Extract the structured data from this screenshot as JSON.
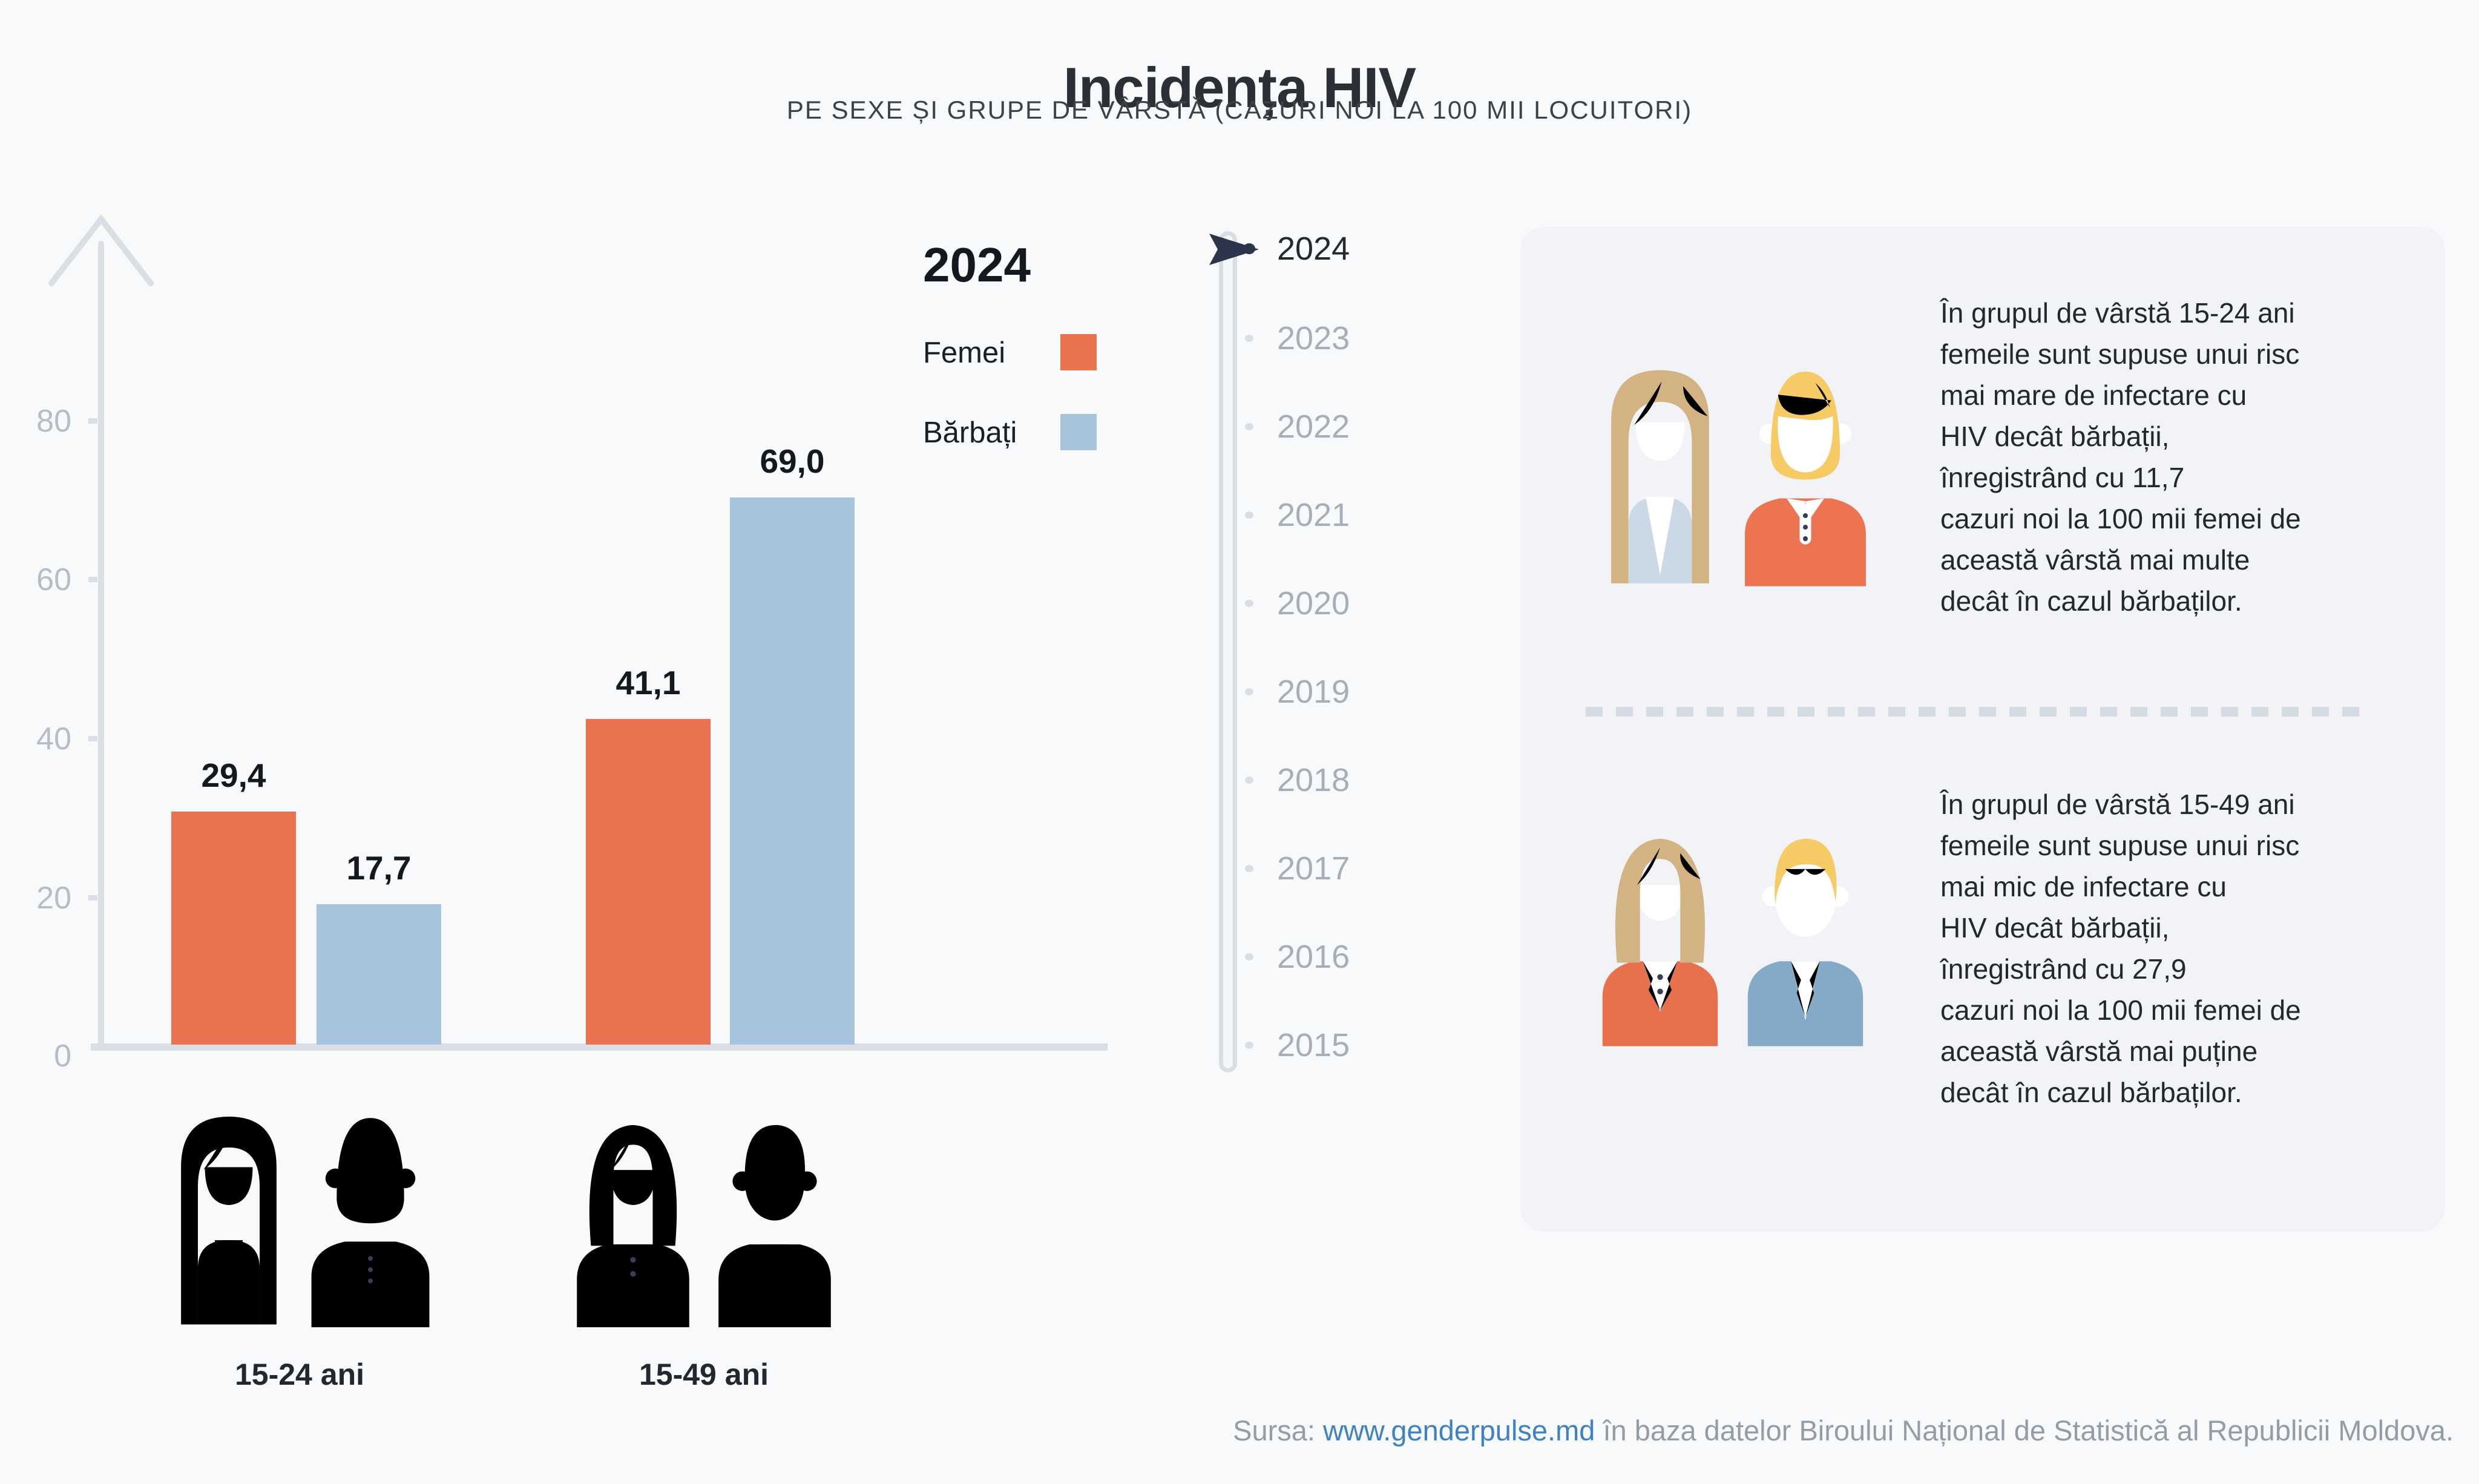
{
  "title": "Incidența HIV",
  "subtitle": "PE SEXE ȘI GRUPE DE VÂRSTĂ (CAZURI NOI LA 100 MII LOCUITORI)",
  "chart_data": {
    "type": "bar",
    "title": "Incidența HIV",
    "subtitle": "PE SEXE ȘI GRUPE DE VÂRSTĂ (CAZURI NOI LA 100 MII LOCUITORI)",
    "year": "2024",
    "categories": [
      "15-24 ani",
      "15-49 ani"
    ],
    "series": [
      {
        "name": "Femei",
        "color": "#E8734E",
        "values": [
          29.4,
          41.1
        ],
        "labels": [
          "29,4",
          "41,1"
        ]
      },
      {
        "name": "Bărbați",
        "color": "#A6C4DD",
        "values": [
          17.7,
          69.0
        ],
        "labels": [
          "17,7",
          "69,0"
        ]
      }
    ],
    "xlabel": "",
    "ylabel": "",
    "ylim": [
      0,
      95
    ],
    "yticks": [
      "0",
      "20",
      "40",
      "60",
      "80"
    ],
    "grid": false,
    "legend_position": "top-right"
  },
  "timeline": {
    "selected": "2024",
    "years": [
      "2024",
      "2023",
      "2022",
      "2021",
      "2020",
      "2019",
      "2018",
      "2017",
      "2016",
      "2015"
    ]
  },
  "insights": [
    {
      "text": "În grupul de vârstă 15-24 ani\nfemeile sunt supuse unui risc\nmai mare de infectare cu\n HIV decât bărbații,\n înregistrând cu 11,7\ncazuri noi la 100 mii femei de\naceastă vârstă mai multe\ndecât în cazul bărbaților."
    },
    {
      "text": "În grupul de vârstă 15-49 ani\nfemeile sunt supuse unui risc\nmai mic de infectare cu\n HIV decât bărbații,\n înregistrând cu 27,9\ncazuri noi la 100 mii femei de\naceastă vârstă mai puține\ndecât în cazul bărbaților."
    }
  ],
  "footer": {
    "prefix": "Sursa: ",
    "link": "www.genderpulse.md",
    "suffix": " în baza datelor Biroului Național de Statistică al Republicii Moldova."
  },
  "colors": {
    "page_bg": "#F8F9FA",
    "card_bg": "#F1F3F6",
    "femei": "#E8734E",
    "barbati": "#A6C4DD",
    "axis": "#DADFE6",
    "tick_text": "#B5BDC7",
    "timeline_active": "#2B3448",
    "timeline_inactive": "#A6AEB9",
    "outline_navy": "#373E59",
    "link_blue": "#3F81C1"
  }
}
